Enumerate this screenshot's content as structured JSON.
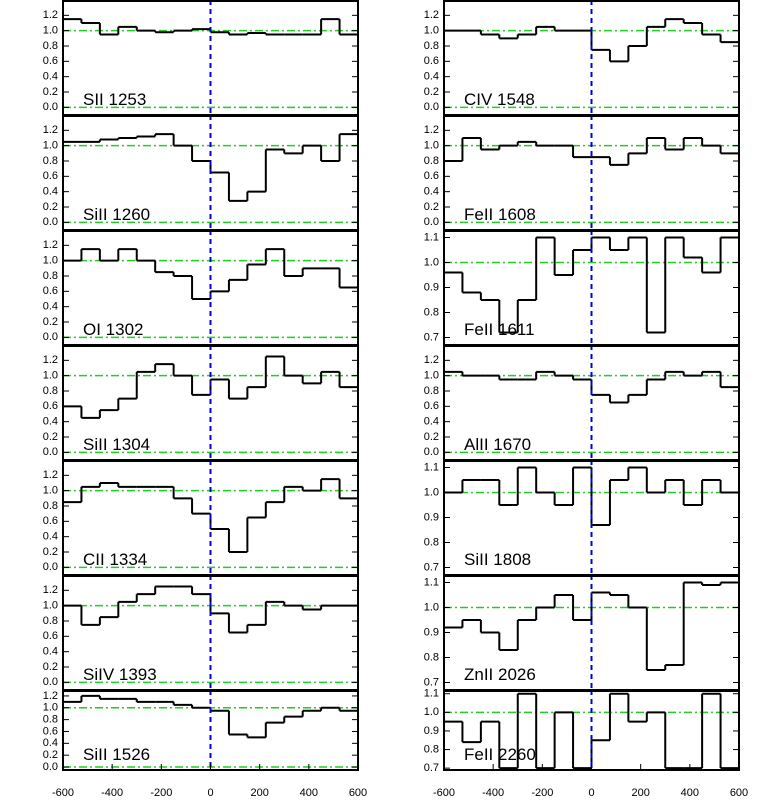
{
  "chart_data": [
    {
      "type": "step",
      "label": "SII 1253",
      "column": "left",
      "color": "#000000",
      "hline_color": "#22cc22",
      "vline_color": "#0000dd",
      "vline": 0,
      "hlines": [
        0,
        1
      ],
      "x": [
        -562.5,
        -487.5,
        -412.5,
        -337.5,
        -262.5,
        -187.5,
        -112.5,
        -37.5,
        37.5,
        112.5,
        187.5,
        262.5,
        337.5,
        412.5,
        487.5,
        562.5
      ],
      "values": [
        1.15,
        1.1,
        0.95,
        1.05,
        1.0,
        0.98,
        1.0,
        1.02,
        0.98,
        0.95,
        0.97,
        0.95,
        0.95,
        0.95,
        1.15,
        0.95
      ],
      "xlim": [
        -600,
        600
      ],
      "ylim": [
        -0.1,
        1.4
      ],
      "yticks": [
        {
          "value": 0,
          "label": "0.0"
        },
        0.2,
        0.4,
        0.6,
        0.8,
        {
          "value": 1,
          "label": "1.0"
        },
        1.2
      ]
    },
    {
      "type": "step",
      "label": "SiII 1260",
      "column": "left",
      "color": "#000000",
      "hline_color": "#22cc22",
      "vline_color": "#0000dd",
      "vline": 0,
      "hlines": [
        0,
        1
      ],
      "x": [
        -562.5,
        -487.5,
        -412.5,
        -337.5,
        -262.5,
        -187.5,
        -112.5,
        -37.5,
        37.5,
        112.5,
        187.5,
        262.5,
        337.5,
        412.5,
        487.5,
        562.5
      ],
      "values": [
        1.05,
        1.05,
        1.08,
        1.1,
        1.12,
        1.15,
        1.0,
        0.8,
        0.65,
        0.28,
        0.4,
        0.95,
        0.9,
        1.0,
        0.8,
        1.15
      ],
      "xlim": [
        -600,
        600
      ],
      "ylim": [
        -0.1,
        1.4
      ],
      "yticks": [
        {
          "value": 0,
          "label": "0.0"
        },
        0.2,
        0.4,
        0.6,
        0.8,
        {
          "value": 1,
          "label": "1.0"
        },
        1.2
      ]
    },
    {
      "type": "step",
      "label": "OI 1302",
      "column": "left",
      "color": "#000000",
      "hline_color": "#22cc22",
      "vline_color": "#0000dd",
      "vline": 0,
      "hlines": [
        0,
        1
      ],
      "x": [
        -562.5,
        -487.5,
        -412.5,
        -337.5,
        -262.5,
        -187.5,
        -112.5,
        -37.5,
        37.5,
        112.5,
        187.5,
        262.5,
        337.5,
        412.5,
        487.5,
        562.5
      ],
      "values": [
        1.0,
        1.15,
        1.0,
        1.15,
        1.0,
        0.85,
        0.8,
        0.5,
        0.6,
        0.75,
        0.95,
        1.15,
        0.8,
        0.9,
        0.9,
        0.65
      ],
      "xlim": [
        -600,
        600
      ],
      "ylim": [
        -0.1,
        1.4
      ],
      "yticks": [
        {
          "value": 0,
          "label": "0.0"
        },
        0.2,
        0.4,
        0.6,
        0.8,
        {
          "value": 1,
          "label": "1.0"
        },
        1.2
      ]
    },
    {
      "type": "step",
      "label": "SiII 1304",
      "column": "left",
      "color": "#000000",
      "hline_color": "#22cc22",
      "vline_color": "#0000dd",
      "vline": 0,
      "hlines": [
        0,
        1
      ],
      "x": [
        -562.5,
        -487.5,
        -412.5,
        -337.5,
        -262.5,
        -187.5,
        -112.5,
        -37.5,
        37.5,
        112.5,
        187.5,
        262.5,
        337.5,
        412.5,
        487.5,
        562.5
      ],
      "values": [
        0.6,
        0.45,
        0.55,
        0.7,
        1.05,
        1.15,
        1.0,
        0.75,
        0.95,
        0.7,
        0.85,
        1.25,
        1.0,
        0.9,
        1.05,
        0.85
      ],
      "xlim": [
        -600,
        600
      ],
      "ylim": [
        -0.1,
        1.4
      ],
      "yticks": [
        {
          "value": 0,
          "label": "0.0"
        },
        0.2,
        0.4,
        0.6,
        0.8,
        {
          "value": 1,
          "label": "1.0"
        },
        1.2
      ]
    },
    {
      "type": "step",
      "label": "CII 1334",
      "column": "left",
      "color": "#000000",
      "hline_color": "#22cc22",
      "vline_color": "#0000dd",
      "vline": 0,
      "hlines": [
        0,
        1
      ],
      "x": [
        -562.5,
        -487.5,
        -412.5,
        -337.5,
        -262.5,
        -187.5,
        -112.5,
        -37.5,
        37.5,
        112.5,
        187.5,
        262.5,
        337.5,
        412.5,
        487.5,
        562.5
      ],
      "values": [
        0.85,
        1.05,
        1.1,
        1.05,
        1.05,
        1.05,
        0.9,
        0.7,
        0.5,
        0.2,
        0.65,
        0.85,
        1.05,
        1.0,
        1.15,
        0.9
      ],
      "xlim": [
        -600,
        600
      ],
      "ylim": [
        -0.1,
        1.4
      ],
      "yticks": [
        {
          "value": 0,
          "label": "0.0"
        },
        0.2,
        0.4,
        0.6,
        0.8,
        {
          "value": 1,
          "label": "1.0"
        },
        1.2
      ]
    },
    {
      "type": "step",
      "label": "SiIV 1393",
      "column": "left",
      "color": "#000000",
      "hline_color": "#22cc22",
      "vline_color": "#0000dd",
      "vline": 0,
      "hlines": [
        0,
        1
      ],
      "x": [
        -562.5,
        -487.5,
        -412.5,
        -337.5,
        -262.5,
        -187.5,
        -112.5,
        -37.5,
        37.5,
        112.5,
        187.5,
        262.5,
        337.5,
        412.5,
        487.5,
        562.5
      ],
      "values": [
        1.0,
        0.75,
        0.85,
        1.05,
        1.15,
        1.25,
        1.25,
        1.15,
        0.9,
        0.65,
        0.75,
        1.05,
        1.0,
        0.95,
        1.0,
        1.0
      ],
      "xlim": [
        -600,
        600
      ],
      "ylim": [
        -0.1,
        1.4
      ],
      "yticks": [
        {
          "value": 0,
          "label": "0.0"
        },
        0.2,
        0.4,
        0.6,
        0.8,
        {
          "value": 1,
          "label": "1.0"
        },
        1.2
      ]
    },
    {
      "type": "step",
      "label": "SiII 1526",
      "column": "left",
      "color": "#000000",
      "hline_color": "#22cc22",
      "vline_color": "#0000dd",
      "vline": 0,
      "hlines": [
        0,
        1
      ],
      "x": [
        -562.5,
        -487.5,
        -412.5,
        -337.5,
        -262.5,
        -187.5,
        -112.5,
        -37.5,
        37.5,
        112.5,
        187.5,
        262.5,
        337.5,
        412.5,
        487.5,
        562.5
      ],
      "values": [
        1.1,
        1.2,
        1.15,
        1.15,
        1.1,
        1.1,
        1.05,
        1.0,
        0.95,
        0.55,
        0.5,
        0.75,
        0.85,
        0.95,
        1.0,
        0.95
      ],
      "xlim": [
        -600,
        600
      ],
      "ylim": [
        -0.05,
        1.3
      ],
      "yticks": [
        {
          "value": 0,
          "label": "0.0"
        },
        0.2,
        0.4,
        0.6,
        0.8,
        {
          "value": 1,
          "label": "1.0"
        },
        1.2
      ],
      "xticks": [
        -600,
        -400,
        -200,
        0,
        200,
        400,
        600
      ]
    },
    {
      "type": "step",
      "label": "CIV 1548",
      "column": "right",
      "color": "#000000",
      "hline_color": "#22cc22",
      "vline_color": "#0000dd",
      "vline": 0,
      "hlines": [
        0,
        1
      ],
      "x": [
        -562.5,
        -487.5,
        -412.5,
        -337.5,
        -262.5,
        -187.5,
        -112.5,
        -37.5,
        37.5,
        112.5,
        187.5,
        262.5,
        337.5,
        412.5,
        487.5,
        562.5
      ],
      "values": [
        1.0,
        1.0,
        0.95,
        0.9,
        0.95,
        1.05,
        1.0,
        1.0,
        0.75,
        0.6,
        0.8,
        1.05,
        1.15,
        1.1,
        0.95,
        0.85
      ],
      "xlim": [
        -600,
        600
      ],
      "ylim": [
        -0.1,
        1.4
      ],
      "yticks": [
        {
          "value": 0,
          "label": "0.0"
        },
        0.2,
        0.4,
        0.6,
        0.8,
        {
          "value": 1,
          "label": "1.0"
        },
        1.2
      ]
    },
    {
      "type": "step",
      "label": "FeII 1608",
      "column": "right",
      "color": "#000000",
      "hline_color": "#22cc22",
      "vline_color": "#0000dd",
      "vline": 0,
      "hlines": [
        0,
        1
      ],
      "x": [
        -562.5,
        -487.5,
        -412.5,
        -337.5,
        -262.5,
        -187.5,
        -112.5,
        -37.5,
        37.5,
        112.5,
        187.5,
        262.5,
        337.5,
        412.5,
        487.5,
        562.5
      ],
      "values": [
        0.8,
        1.1,
        0.95,
        1.0,
        1.05,
        1.0,
        1.0,
        0.85,
        0.85,
        0.75,
        0.9,
        1.1,
        0.95,
        1.1,
        1.0,
        0.9
      ],
      "xlim": [
        -600,
        600
      ],
      "ylim": [
        -0.1,
        1.4
      ],
      "yticks": [
        {
          "value": 0,
          "label": "0.0"
        },
        0.2,
        0.4,
        0.6,
        0.8,
        {
          "value": 1,
          "label": "1.0"
        },
        1.2
      ]
    },
    {
      "type": "step",
      "label": "FeII 1611",
      "column": "right",
      "color": "#000000",
      "hline_color": "#22cc22",
      "vline_color": "#0000dd",
      "vline": 0,
      "hlines": [
        1
      ],
      "x": [
        -562.5,
        -487.5,
        -412.5,
        -337.5,
        -262.5,
        -187.5,
        -112.5,
        -37.5,
        37.5,
        112.5,
        187.5,
        262.5,
        337.5,
        412.5,
        487.5,
        562.5
      ],
      "values": [
        0.96,
        0.88,
        0.85,
        0.72,
        0.85,
        1.1,
        0.95,
        1.05,
        1.1,
        1.05,
        1.1,
        0.72,
        1.1,
        1.02,
        0.96,
        1.1
      ],
      "xlim": [
        -600,
        600
      ],
      "ylim": [
        0.67,
        1.13
      ],
      "yticks": [
        0.7,
        0.8,
        0.9,
        {
          "value": 1,
          "label": "1.0"
        },
        1.1
      ]
    },
    {
      "type": "step",
      "label": "AlII 1670",
      "column": "right",
      "color": "#000000",
      "hline_color": "#22cc22",
      "vline_color": "#0000dd",
      "vline": 0,
      "hlines": [
        0,
        1
      ],
      "x": [
        -562.5,
        -487.5,
        -412.5,
        -337.5,
        -262.5,
        -187.5,
        -112.5,
        -37.5,
        37.5,
        112.5,
        187.5,
        262.5,
        337.5,
        412.5,
        487.5,
        562.5
      ],
      "values": [
        1.05,
        1.0,
        1.0,
        0.95,
        0.95,
        1.05,
        1.0,
        0.95,
        0.75,
        0.65,
        0.75,
        0.95,
        1.05,
        1.0,
        1.05,
        0.85
      ],
      "xlim": [
        -600,
        600
      ],
      "ylim": [
        -0.1,
        1.4
      ],
      "yticks": [
        {
          "value": 0,
          "label": "0.0"
        },
        0.2,
        0.4,
        0.6,
        0.8,
        {
          "value": 1,
          "label": "1.0"
        },
        1.2
      ]
    },
    {
      "type": "step",
      "label": "SiII 1808",
      "column": "right",
      "color": "#000000",
      "hline_color": "#22cc22",
      "vline_color": "#0000dd",
      "vline": 0,
      "hlines": [
        1
      ],
      "x": [
        -562.5,
        -487.5,
        -412.5,
        -337.5,
        -262.5,
        -187.5,
        -112.5,
        -37.5,
        37.5,
        112.5,
        187.5,
        262.5,
        337.5,
        412.5,
        487.5,
        562.5
      ],
      "values": [
        1.0,
        1.05,
        1.05,
        0.95,
        1.1,
        1.0,
        0.95,
        1.1,
        0.87,
        1.05,
        1.1,
        1.0,
        1.05,
        0.95,
        1.05,
        1.0
      ],
      "xlim": [
        -600,
        600
      ],
      "ylim": [
        0.67,
        1.13
      ],
      "yticks": [
        0.7,
        0.8,
        0.9,
        {
          "value": 1,
          "label": "1.0"
        },
        1.1
      ]
    },
    {
      "type": "step",
      "label": "ZnII 2026",
      "column": "right",
      "color": "#000000",
      "hline_color": "#22cc22",
      "vline_color": "#0000dd",
      "vline": 0,
      "hlines": [
        1
      ],
      "x": [
        -562.5,
        -487.5,
        -412.5,
        -337.5,
        -262.5,
        -187.5,
        -112.5,
        -37.5,
        37.5,
        112.5,
        187.5,
        262.5,
        337.5,
        412.5,
        487.5,
        562.5
      ],
      "values": [
        0.92,
        0.95,
        0.9,
        0.83,
        0.95,
        1.0,
        1.05,
        0.95,
        1.06,
        1.05,
        1.0,
        0.75,
        0.77,
        1.1,
        1.09,
        1.1
      ],
      "xlim": [
        -600,
        600
      ],
      "ylim": [
        0.67,
        1.13
      ],
      "yticks": [
        0.7,
        0.8,
        0.9,
        {
          "value": 1,
          "label": "1.0"
        },
        1.1
      ]
    },
    {
      "type": "step",
      "label": "FeII 2260",
      "column": "right",
      "color": "#000000",
      "hline_color": "#22cc22",
      "vline_color": "#0000dd",
      "vline": 0,
      "hlines": [
        1
      ],
      "x": [
        -562.5,
        -487.5,
        -412.5,
        -337.5,
        -262.5,
        -187.5,
        -112.5,
        -37.5,
        37.5,
        112.5,
        187.5,
        262.5,
        337.5,
        412.5,
        487.5,
        562.5
      ],
      "values": [
        0.95,
        0.84,
        0.95,
        0.7,
        1.1,
        0.7,
        1.0,
        0.7,
        0.85,
        1.1,
        0.95,
        1.0,
        0.7,
        0.7,
        1.1,
        0.7
      ],
      "xlim": [
        -600,
        600
      ],
      "ylim": [
        0.69,
        1.12
      ],
      "yticks": [
        0.7,
        0.8,
        0.9,
        {
          "value": 1,
          "label": "1.0"
        },
        1.1
      ],
      "xticks": [
        -600,
        -400,
        -200,
        0,
        200,
        400,
        600
      ]
    }
  ]
}
